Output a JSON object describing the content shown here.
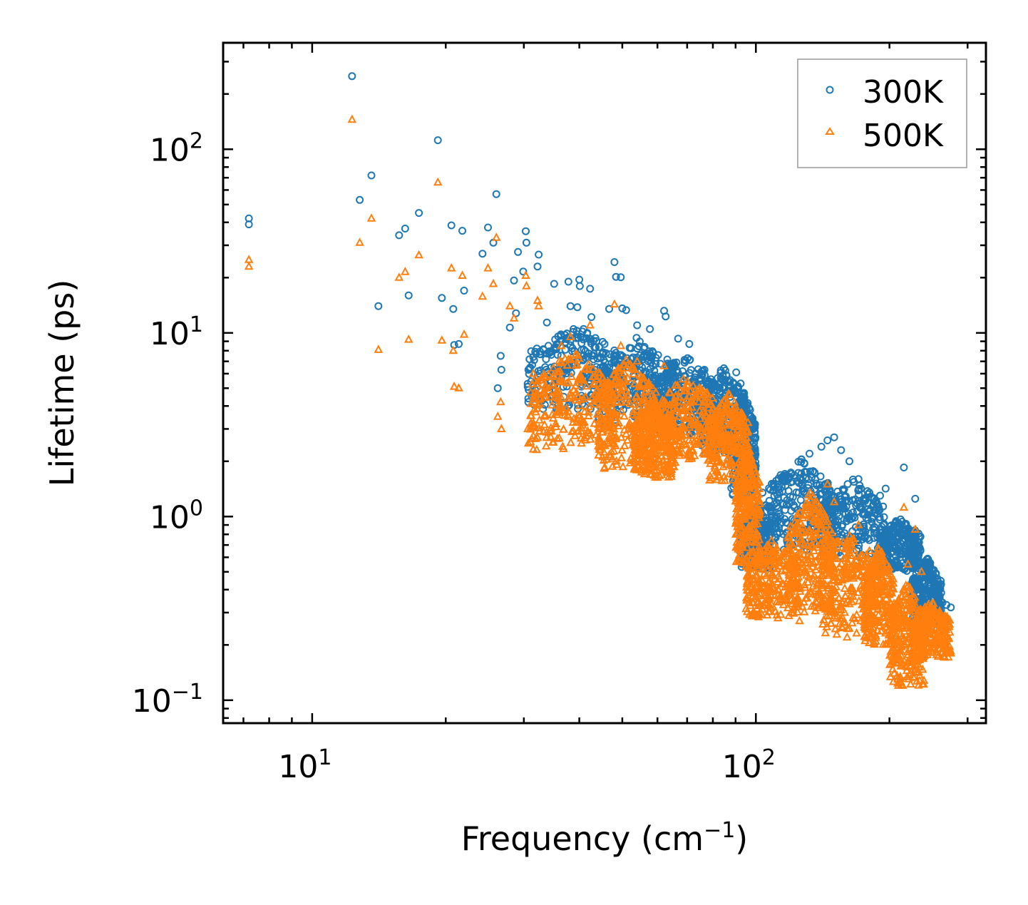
{
  "chart_data": {
    "type": "scatter",
    "title": "",
    "xlabel": "Frequency (cm",
    "xlabel_sup": "−1",
    "xlabel_end": ")",
    "ylabel": "Lifetime (ps)",
    "xscale": "log",
    "yscale": "log",
    "xlim": [
      6.3,
      330
    ],
    "ylim": [
      0.075,
      380
    ],
    "x_ticks": [
      {
        "value": 10,
        "base": "10",
        "exp": "1"
      },
      {
        "value": 100,
        "base": "10",
        "exp": "2"
      }
    ],
    "y_ticks": [
      {
        "value": 0.1,
        "base": "10",
        "exp": "−1"
      },
      {
        "value": 1,
        "base": "10",
        "exp": "0"
      },
      {
        "value": 10,
        "base": "10",
        "exp": "1"
      },
      {
        "value": 100,
        "base": "10",
        "exp": "2"
      }
    ],
    "legend_position": "top-right",
    "series": [
      {
        "name": "300K",
        "marker": "circle",
        "color": "#1f77b4",
        "points": [
          [
            7.2,
            42
          ],
          [
            7.2,
            39
          ],
          [
            12.3,
            250
          ],
          [
            12.8,
            53
          ],
          [
            13.6,
            72
          ],
          [
            14.1,
            14
          ],
          [
            15.7,
            34
          ],
          [
            16.2,
            37
          ],
          [
            16.5,
            16
          ],
          [
            17.4,
            45
          ],
          [
            19.2,
            112
          ],
          [
            19.6,
            15.5
          ],
          [
            20.6,
            38.5
          ],
          [
            20.8,
            13.5
          ],
          [
            20.9,
            8.6
          ],
          [
            21.4,
            8.7
          ],
          [
            21.8,
            36
          ],
          [
            22.0,
            17
          ],
          [
            24.2,
            27
          ],
          [
            24.9,
            37.5
          ],
          [
            25.6,
            31
          ],
          [
            26.0,
            57
          ],
          [
            26.6,
            7.5
          ],
          [
            26.2,
            5
          ],
          [
            26.7,
            6.3
          ],
          [
            27.9,
            10.7
          ],
          [
            28.5,
            19.3
          ],
          [
            28.8,
            12.8
          ],
          [
            29.1,
            27.6
          ],
          [
            29.9,
            21.6
          ],
          [
            30.3,
            35.8
          ],
          [
            30.4,
            31
          ],
          [
            30.6,
            5.1
          ],
          [
            30.7,
            4.2
          ],
          [
            31.5,
            7.4
          ],
          [
            32.2,
            23
          ],
          [
            32.4,
            26.7
          ],
          [
            33.8,
            11.4
          ],
          [
            35.1,
            18.5
          ],
          [
            36.4,
            9.1
          ],
          [
            37.2,
            8.1
          ],
          [
            37.8,
            19
          ],
          [
            38.2,
            14
          ],
          [
            39.6,
            13.8
          ],
          [
            40.0,
            19.5
          ],
          [
            40.1,
            18
          ],
          [
            40.9,
            10.5
          ],
          [
            41.3,
            7.3
          ],
          [
            42.3,
            17.4
          ],
          [
            42.6,
            12.2
          ],
          [
            45.6,
            8.7
          ],
          [
            46.7,
            13.5
          ],
          [
            48.0,
            24.3
          ],
          [
            48.4,
            20.2
          ],
          [
            49.6,
            20.1
          ],
          [
            50.0,
            13.6
          ],
          [
            51.0,
            13.3
          ],
          [
            54.0,
            11
          ],
          [
            57.7,
            10.5
          ],
          [
            62.1,
            13.2
          ],
          [
            62.6,
            12.3
          ],
          [
            66.8,
            9.3
          ],
          [
            70.8,
            8.7
          ],
          [
            76.6,
            6.3
          ],
          [
            79.2,
            5.1
          ],
          [
            90.3,
            6.1
          ],
          [
            92.4,
            5.3
          ],
          [
            103.5,
            1.35
          ],
          [
            105.5,
            1.15
          ],
          [
            110.2,
            0.95
          ],
          [
            120.3,
            1.2
          ],
          [
            132.1,
            2.2
          ],
          [
            140.5,
            2.4
          ],
          [
            145.0,
            2.6
          ],
          [
            150.1,
            2.7
          ],
          [
            155.6,
            2.3
          ],
          [
            162.5,
            2.0
          ],
          [
            170.3,
            1.6
          ],
          [
            180.2,
            1.35
          ],
          [
            190.5,
            1.3
          ],
          [
            196.1,
            1.42
          ],
          [
            210.3,
            0.85
          ],
          [
            215.6,
            1.85
          ],
          [
            220.1,
            0.82
          ],
          [
            228.6,
            1.25
          ],
          [
            236.2,
            0.55
          ],
          [
            245.3,
            0.45
          ],
          [
            252.1,
            0.36
          ],
          [
            263.4,
            0.34
          ],
          [
            268.8,
            0.33
          ],
          [
            275.0,
            0.32
          ],
          [
            258.2,
            0.35
          ]
        ],
        "clusters": [
          {
            "x": [
              30.5,
              50
            ],
            "y": [
              3.8,
              11
            ]
          },
          {
            "x": [
              44,
              66
            ],
            "y": [
              3.2,
              9.5
            ]
          },
          {
            "x": [
              58,
              80
            ],
            "y": [
              2.8,
              8
            ]
          },
          {
            "x": [
              75,
              95
            ],
            "y": [
              2.2,
              6.5
            ]
          },
          {
            "x": [
              88,
              100
            ],
            "y": [
              1.3,
              4.8
            ]
          },
          {
            "x": [
              92,
              108
            ],
            "y": [
              0.52,
              1.2
            ]
          },
          {
            "x": [
              105,
              150
            ],
            "y": [
              0.65,
              2.1
            ]
          },
          {
            "x": [
              140,
              195
            ],
            "y": [
              0.6,
              1.6
            ]
          },
          {
            "x": [
              190,
              235
            ],
            "y": [
              0.5,
              1.0
            ]
          },
          {
            "x": [
              225,
              262
            ],
            "y": [
              0.25,
              0.6
            ]
          }
        ]
      },
      {
        "name": "500K",
        "marker": "triangle",
        "color": "#ff7f0e",
        "points": [
          [
            7.2,
            25
          ],
          [
            7.2,
            23
          ],
          [
            12.3,
            145
          ],
          [
            12.8,
            31
          ],
          [
            13.6,
            42
          ],
          [
            14.1,
            8.1
          ],
          [
            15.7,
            20
          ],
          [
            16.2,
            21.5
          ],
          [
            16.5,
            9.2
          ],
          [
            17.4,
            26.5
          ],
          [
            19.2,
            66
          ],
          [
            19.6,
            9.1
          ],
          [
            20.6,
            22.5
          ],
          [
            20.8,
            8.0
          ],
          [
            20.9,
            5.1
          ],
          [
            21.4,
            5.0
          ],
          [
            21.8,
            20.5
          ],
          [
            22.0,
            9.8
          ],
          [
            24.2,
            15.8
          ],
          [
            24.9,
            22.5
          ],
          [
            25.6,
            18.5
          ],
          [
            26.0,
            33
          ],
          [
            26.6,
            4.2
          ],
          [
            26.2,
            3.5
          ],
          [
            26.7,
            3.0
          ],
          [
            27.9,
            14
          ],
          [
            28.5,
            12
          ],
          [
            30.3,
            20.5
          ],
          [
            30.4,
            18
          ],
          [
            30.6,
            3.0
          ],
          [
            30.7,
            2.5
          ],
          [
            31.5,
            6
          ],
          [
            32.2,
            15
          ],
          [
            32.4,
            14
          ],
          [
            36.4,
            8.5
          ],
          [
            38.2,
            9.5
          ],
          [
            42.3,
            11
          ],
          [
            48.0,
            14.3
          ],
          [
            49.6,
            8.5
          ],
          [
            54.0,
            7
          ],
          [
            62.1,
            6.6
          ],
          [
            70.8,
            4.5
          ],
          [
            90.3,
            3.7
          ],
          [
            92.4,
            3.4
          ],
          [
            95.1,
            1.8
          ],
          [
            100.2,
            0.8
          ],
          [
            98.5,
            0.3
          ],
          [
            112.1,
            0.28
          ],
          [
            120.3,
            0.3
          ],
          [
            125.4,
            0.27
          ],
          [
            136.1,
            0.95
          ],
          [
            140.5,
            1.1
          ],
          [
            145.0,
            1.5
          ],
          [
            150.1,
            1.2
          ],
          [
            160.5,
            0.22
          ],
          [
            170.3,
            0.9
          ],
          [
            180.2,
            0.65
          ],
          [
            190.5,
            0.6
          ],
          [
            215.6,
            1.12
          ],
          [
            220.1,
            0.55
          ],
          [
            228.6,
            0.85
          ],
          [
            236.2,
            0.5
          ],
          [
            260.3,
            0.22
          ],
          [
            268.8,
            0.2
          ],
          [
            275.0,
            0.18
          ],
          [
            209.5,
            0.12
          ],
          [
            214.2,
            0.12
          ]
        ],
        "clusters": [
          {
            "x": [
              31,
              48
            ],
            "y": [
              2.3,
              8
            ]
          },
          {
            "x": [
              44,
              60
            ],
            "y": [
              1.8,
              7.5
            ]
          },
          {
            "x": [
              53,
              66
            ],
            "y": [
              1.6,
              4.5
            ]
          },
          {
            "x": [
              60,
              82
            ],
            "y": [
              2.0,
              6
            ]
          },
          {
            "x": [
              78,
              96
            ],
            "y": [
              1.5,
              4.8
            ]
          },
          {
            "x": [
              90,
              102
            ],
            "y": [
              0.55,
              2.5
            ]
          },
          {
            "x": [
              95,
              125
            ],
            "y": [
              0.28,
              0.75
            ]
          },
          {
            "x": [
              118,
              150
            ],
            "y": [
              0.3,
              1.4
            ]
          },
          {
            "x": [
              140,
              185
            ],
            "y": [
              0.22,
              0.9
            ]
          },
          {
            "x": [
              175,
              205
            ],
            "y": [
              0.2,
              0.7
            ]
          },
          {
            "x": [
              200,
              240
            ],
            "y": [
              0.12,
              0.45
            ]
          },
          {
            "x": [
              225,
              275
            ],
            "y": [
              0.17,
              0.35
            ]
          }
        ]
      }
    ]
  }
}
